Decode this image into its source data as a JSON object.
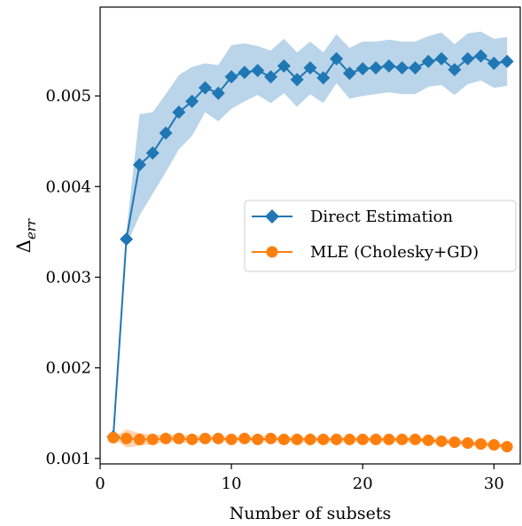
{
  "chart_data": {
    "type": "line",
    "xlabel": "Number of subsets",
    "ylabel_main": "Δ",
    "ylabel_sub": "err",
    "xlim": [
      0,
      32
    ],
    "ylim": [
      0.00094,
      0.00598
    ],
    "xticks": [
      0,
      10,
      20,
      30
    ],
    "xtick_labels": [
      "0",
      "10",
      "20",
      "30"
    ],
    "yticks": [
      0.001,
      0.002,
      0.003,
      0.004,
      0.005
    ],
    "ytick_labels": [
      "0.001",
      "0.002",
      "0.003",
      "0.004",
      "0.005"
    ],
    "legend_position": "center-right",
    "grid": false,
    "x": [
      1,
      2,
      3,
      4,
      5,
      6,
      7,
      8,
      9,
      10,
      11,
      12,
      13,
      14,
      15,
      16,
      17,
      18,
      19,
      20,
      21,
      22,
      23,
      24,
      25,
      26,
      27,
      28,
      29,
      30,
      31
    ],
    "series": [
      {
        "name": "Direct Estimation",
        "color": "#1f77b4",
        "band_color": "#aecde5",
        "marker": "diamond",
        "values": [
          0.00124,
          0.00342,
          0.00424,
          0.00437,
          0.00459,
          0.00482,
          0.00494,
          0.00509,
          0.00503,
          0.00521,
          0.00526,
          0.00528,
          0.00521,
          0.00533,
          0.00518,
          0.00531,
          0.0052,
          0.00541,
          0.00525,
          0.0053,
          0.00531,
          0.00533,
          0.00531,
          0.00531,
          0.00538,
          0.00541,
          0.00529,
          0.00541,
          0.00544,
          0.00536,
          0.00538
        ],
        "upper": [
          0.00124,
          0.0035,
          0.0048,
          0.00482,
          0.00502,
          0.00523,
          0.00532,
          0.00536,
          0.00534,
          0.00556,
          0.00558,
          0.00555,
          0.0055,
          0.00563,
          0.00548,
          0.0056,
          0.00548,
          0.00568,
          0.00553,
          0.0056,
          0.0056,
          0.00562,
          0.0056,
          0.0056,
          0.00566,
          0.0057,
          0.00557,
          0.00569,
          0.00571,
          0.00563,
          0.00565
        ],
        "lower": [
          0.00124,
          0.00335,
          0.00368,
          0.00392,
          0.00416,
          0.00441,
          0.00456,
          0.00482,
          0.00472,
          0.00486,
          0.00494,
          0.00501,
          0.00492,
          0.00503,
          0.00488,
          0.00502,
          0.00492,
          0.00514,
          0.00497,
          0.005,
          0.00502,
          0.00504,
          0.00502,
          0.00502,
          0.0051,
          0.00512,
          0.00501,
          0.00513,
          0.00517,
          0.00509,
          0.00511
        ]
      },
      {
        "name": "MLE (Cholesky+GD)",
        "color": "#ff7f0e",
        "band_color": "#ffcfa6",
        "marker": "circle",
        "values": [
          0.00123,
          0.00122,
          0.00121,
          0.00121,
          0.00122,
          0.00122,
          0.00121,
          0.00122,
          0.00122,
          0.00121,
          0.00122,
          0.00121,
          0.00122,
          0.00121,
          0.00121,
          0.00121,
          0.00121,
          0.00121,
          0.00121,
          0.00121,
          0.00121,
          0.00121,
          0.00121,
          0.00121,
          0.0012,
          0.00119,
          0.00118,
          0.00117,
          0.00116,
          0.00115,
          0.00113
        ],
        "upper": [
          0.00123,
          0.00132,
          0.00128,
          0.00126,
          0.00126,
          0.00126,
          0.00125,
          0.00125,
          0.00125,
          0.00124,
          0.00125,
          0.00124,
          0.00125,
          0.00124,
          0.00124,
          0.00124,
          0.00124,
          0.00124,
          0.00124,
          0.00124,
          0.00124,
          0.00124,
          0.00124,
          0.00124,
          0.00123,
          0.00122,
          0.00121,
          0.0012,
          0.00119,
          0.00118,
          0.00116
        ],
        "lower": [
          0.00123,
          0.00112,
          0.00114,
          0.00116,
          0.00118,
          0.00118,
          0.00117,
          0.00119,
          0.00119,
          0.00118,
          0.00119,
          0.00118,
          0.00119,
          0.00118,
          0.00118,
          0.00118,
          0.00118,
          0.00118,
          0.00118,
          0.00118,
          0.00118,
          0.00118,
          0.00118,
          0.00118,
          0.00117,
          0.00116,
          0.00115,
          0.00114,
          0.00113,
          0.00112,
          0.0011
        ]
      }
    ]
  }
}
